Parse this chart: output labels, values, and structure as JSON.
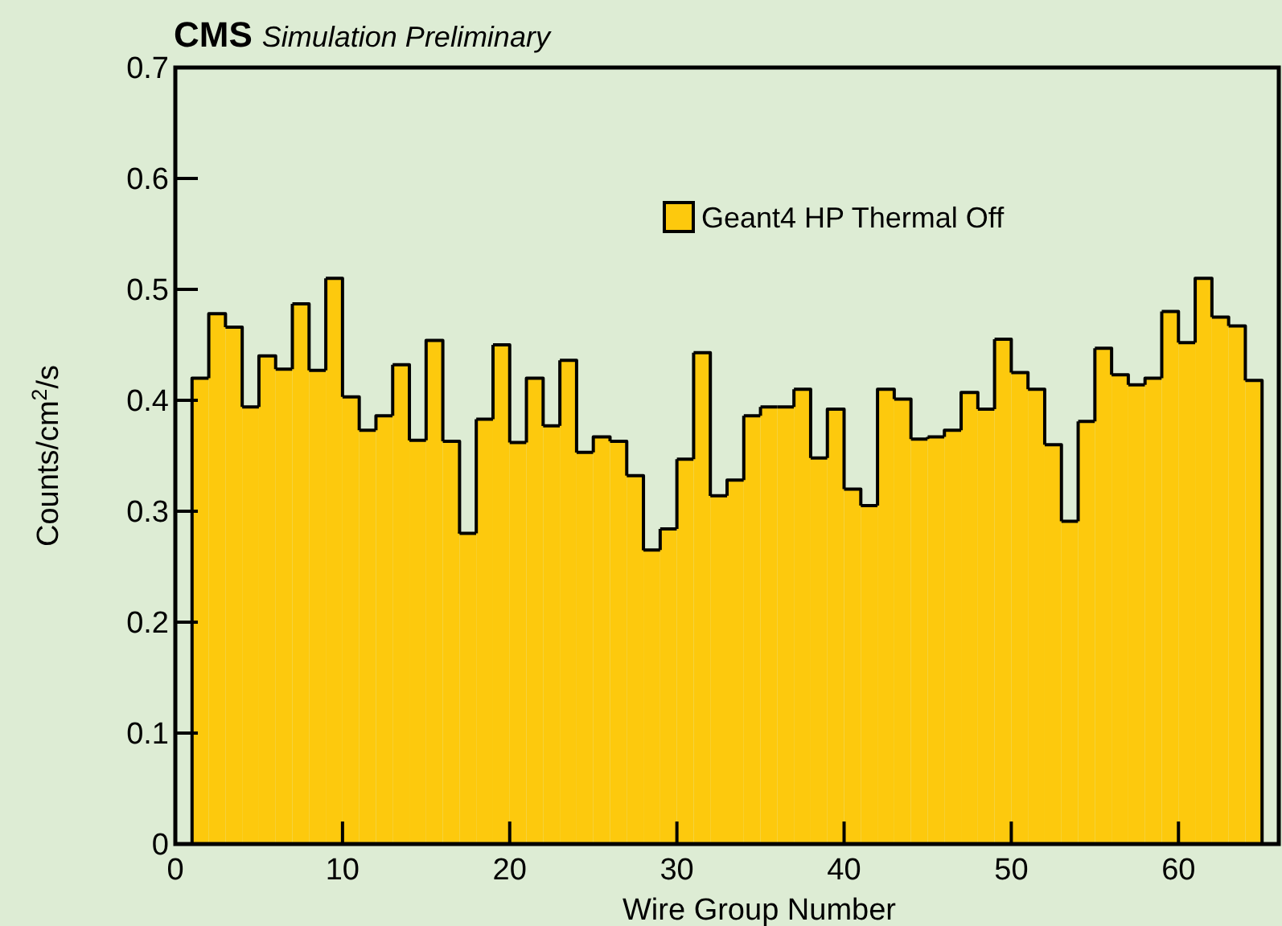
{
  "chart_data": {
    "type": "histogram",
    "title": "CMS",
    "subtitle": "Simulation Preliminary",
    "xlabel": "Wire Group Number",
    "ylabel": "Counts/cm$^{2}$/s",
    "bins": [
      1,
      2,
      3,
      4,
      5,
      6,
      7,
      8,
      9,
      10,
      11,
      12,
      13,
      14,
      15,
      16,
      17,
      18,
      19,
      20,
      21,
      22,
      23,
      24,
      25,
      26,
      27,
      28,
      29,
      30,
      31,
      32,
      33,
      34,
      35,
      36,
      37,
      38,
      39,
      40,
      41,
      42,
      43,
      44,
      45,
      46,
      47,
      48,
      49,
      50,
      51,
      52,
      53,
      54,
      55,
      56,
      57,
      58,
      59,
      60,
      61,
      62,
      63,
      64,
      65
    ],
    "series": [
      {
        "name": "Geant4 HP Thermal Off",
        "color": "#fdc90d",
        "values": [
          0.42,
          0.478,
          0.466,
          0.394,
          0.44,
          0.428,
          0.487,
          0.427,
          0.51,
          0.403,
          0.373,
          0.386,
          0.432,
          0.364,
          0.454,
          0.363,
          0.28,
          0.383,
          0.45,
          0.362,
          0.42,
          0.377,
          0.436,
          0.353,
          0.367,
          0.363,
          0.332,
          0.265,
          0.284,
          0.347,
          0.443,
          0.314,
          0.328,
          0.386,
          0.394,
          0.394,
          0.41,
          0.348,
          0.392,
          0.32,
          0.305,
          0.41,
          0.401,
          0.365,
          0.367,
          0.373,
          0.407,
          0.392,
          0.455,
          0.425,
          0.41,
          0.36,
          0.291,
          0.381,
          0.447,
          0.423,
          0.414,
          0.42,
          0.48,
          0.452,
          0.51,
          0.475,
          0.467,
          0.418
        ]
      }
    ],
    "xlim": [
      0,
      66
    ],
    "xticks": [
      0,
      10,
      20,
      30,
      40,
      50,
      60
    ],
    "ylim": [
      0,
      0.7
    ],
    "yticks": [
      0,
      0.1,
      0.2,
      0.3,
      0.4,
      0.5,
      0.6,
      0.7
    ],
    "legend": "top right",
    "grid": false
  }
}
